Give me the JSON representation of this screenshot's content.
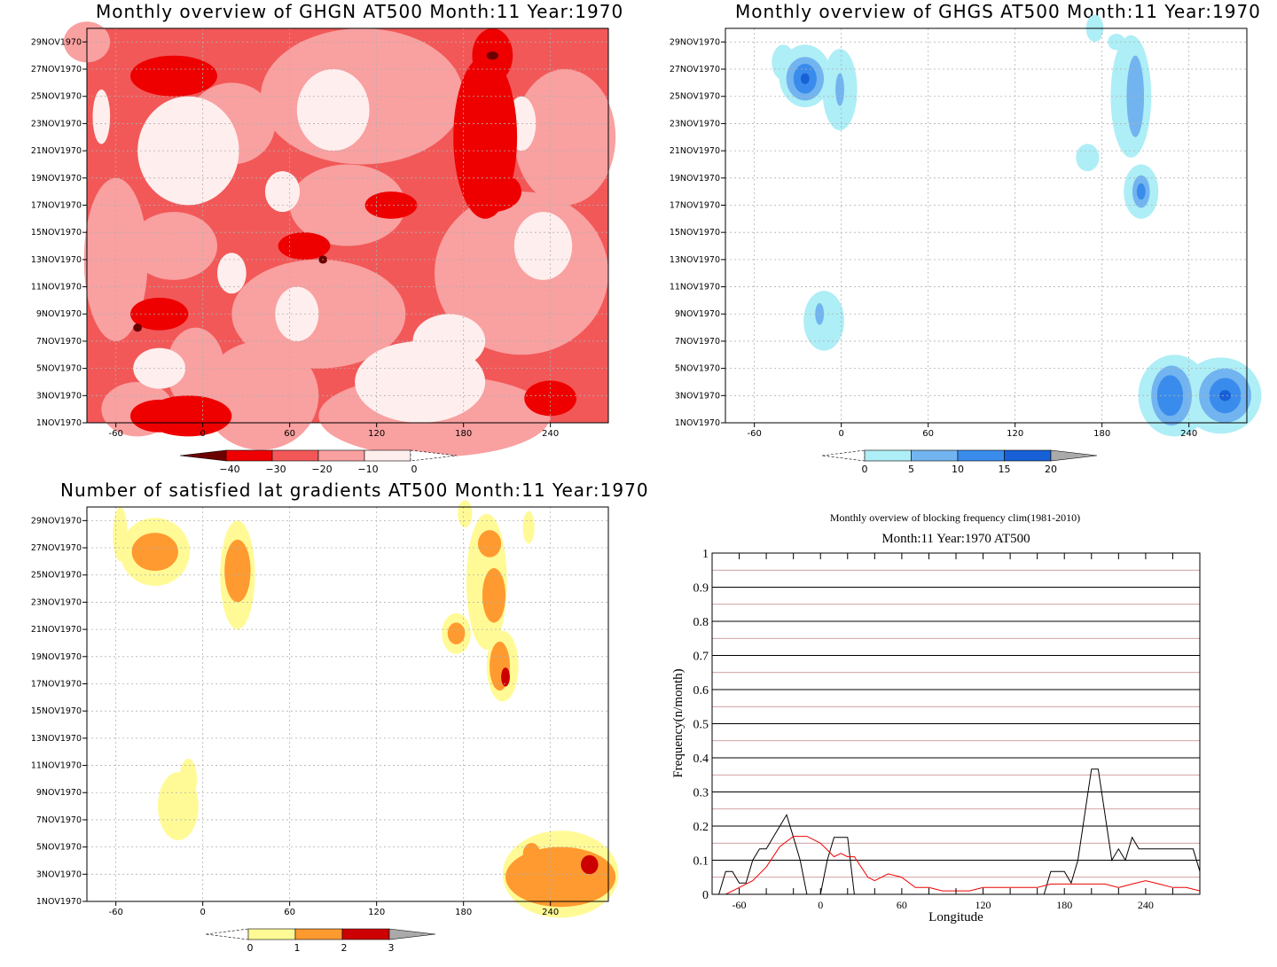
{
  "panels": {
    "ghgn": {
      "title": "Monthly overview of GHGN AT500 Month:11 Year:1970",
      "colorbar_labels": [
        "−40",
        "−30",
        "−20",
        "−10",
        "0"
      ],
      "colors": {
        "c1": "#ffeeee",
        "c2": "#f9a0a0",
        "c3": "#f25858",
        "c4": "#ee0000",
        "c5": "#6a0000"
      }
    },
    "ghgs": {
      "title": "Monthly overview of GHGS AT500 Month:11 Year:1970",
      "colorbar_labels": [
        "0",
        "5",
        "10",
        "15",
        "20"
      ],
      "colors": {
        "c1": "#aeeef6",
        "c2": "#72b4f0",
        "c3": "#3a8cec",
        "c4": "#1860d6",
        "over": "#aaaaaa"
      }
    },
    "lat": {
      "title": "Number of satisfied lat gradients AT500 Month:11 Year:1970",
      "colorbar_labels": [
        "0",
        "1",
        "2",
        "3"
      ],
      "colors": {
        "c1": "#fffa96",
        "c2": "#ff9a30",
        "c3": "#cc0000",
        "over": "#aaaaaa"
      }
    }
  },
  "map_axes": {
    "y_ticks": [
      "1NOV1970",
      "3NOV1970",
      "5NOV1970",
      "7NOV1970",
      "9NOV1970",
      "11NOV1970",
      "13NOV1970",
      "15NOV1970",
      "17NOV1970",
      "19NOV1970",
      "21NOV1970",
      "23NOV1970",
      "25NOV1970",
      "27NOV1970",
      "29NOV1970"
    ],
    "x_ticks": [
      "-60",
      "0",
      "60",
      "120",
      "180",
      "240"
    ]
  },
  "chart_data": {
    "type": "line",
    "title": "Monthly overview of blocking frequency clim(1981-2010)",
    "subtitle": "Month:11 Year:1970  AT500",
    "xlabel": "Longitude",
    "ylabel": "Frequency(n/month)",
    "xlim": [
      -80,
      280
    ],
    "ylim": [
      0,
      1
    ],
    "x_tick_labels": [
      "-60",
      "0",
      "60",
      "120",
      "180",
      "240"
    ],
    "y_tick_labels": [
      "0",
      "0.1",
      "0.2",
      "0.3",
      "0.4",
      "0.5",
      "0.6",
      "0.7",
      "0.8",
      "0.9",
      "1"
    ],
    "grid": true,
    "series": [
      {
        "color": "#000000",
        "x": [
          -80,
          -75,
          -70,
          -65,
          -60,
          -55,
          -50,
          -45,
          -40,
          -35,
          -30,
          -25,
          -20,
          -15,
          -10,
          -5,
          0,
          5,
          10,
          15,
          20,
          25,
          30,
          35,
          40,
          165,
          170,
          175,
          180,
          185,
          190,
          195,
          200,
          205,
          210,
          215,
          220,
          225,
          230,
          235,
          240,
          245,
          250,
          255,
          260,
          265,
          270,
          275,
          280
        ],
        "y": [
          0,
          0,
          0.067,
          0.067,
          0.033,
          0.033,
          0.1,
          0.133,
          0.133,
          0.167,
          0.2,
          0.233,
          0.167,
          0.1,
          0,
          0,
          0,
          0.1,
          0.167,
          0.167,
          0.167,
          0,
          0,
          0,
          0,
          0,
          0.067,
          0.067,
          0.067,
          0.033,
          0.1,
          0.233,
          0.367,
          0.367,
          0.233,
          0.1,
          0.133,
          0.1,
          0.167,
          0.133,
          0.133,
          0.133,
          0.133,
          0.133,
          0.133,
          0.133,
          0.133,
          0.133,
          0.067
        ]
      },
      {
        "color": "#ee0000",
        "x": [
          -80,
          -70,
          -60,
          -50,
          -40,
          -30,
          -20,
          -15,
          -10,
          -5,
          0,
          5,
          10,
          15,
          20,
          25,
          30,
          35,
          40,
          50,
          60,
          70,
          80,
          90,
          100,
          110,
          120,
          130,
          140,
          150,
          160,
          170,
          180,
          190,
          200,
          210,
          220,
          230,
          240,
          250,
          260,
          270,
          280
        ],
        "y": [
          0.0,
          0.0,
          0.02,
          0.04,
          0.08,
          0.14,
          0.17,
          0.17,
          0.17,
          0.16,
          0.15,
          0.13,
          0.11,
          0.12,
          0.11,
          0.11,
          0.08,
          0.05,
          0.04,
          0.06,
          0.05,
          0.02,
          0.02,
          0.01,
          0.01,
          0.01,
          0.02,
          0.02,
          0.02,
          0.02,
          0.02,
          0.03,
          0.03,
          0.03,
          0.03,
          0.03,
          0.02,
          0.03,
          0.04,
          0.03,
          0.02,
          0.02,
          0.01
        ]
      }
    ]
  }
}
